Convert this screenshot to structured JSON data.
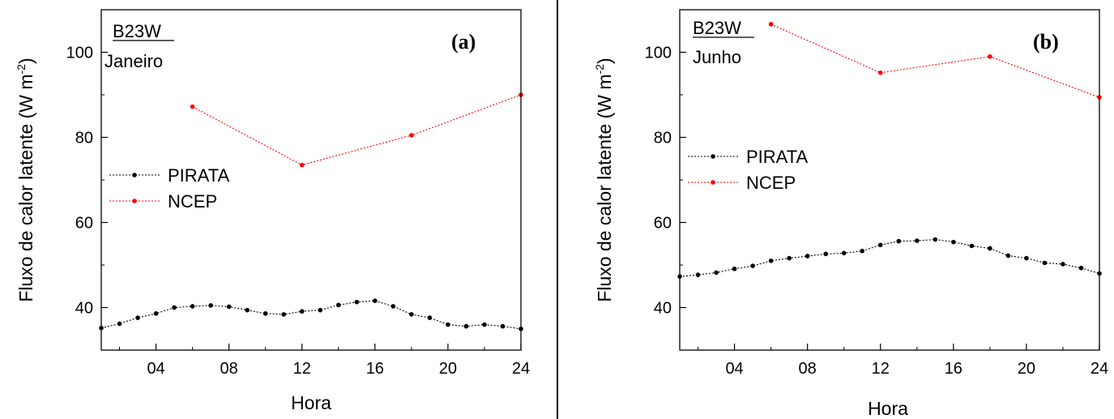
{
  "chart_data": [
    {
      "type": "line",
      "panel_label": "(a)",
      "station": "B23W",
      "month": "Janeiro",
      "xlabel": "Hora",
      "ylabel": "Fluxo de calor latente (W m",
      "ylabel_sup": "-2",
      "ylabel_close": ")",
      "xlim": [
        1,
        24
      ],
      "ylim": [
        30,
        110
      ],
      "xticks": [
        "04",
        "08",
        "12",
        "16",
        "20",
        "24"
      ],
      "xtick_values": [
        4,
        8,
        12,
        16,
        20,
        24
      ],
      "yticks": [
        "40",
        "60",
        "80",
        "100"
      ],
      "ytick_values": [
        40,
        60,
        80,
        100
      ],
      "legend_position": "middle-left",
      "series": [
        {
          "name": "PIRATA",
          "color": "#000000",
          "x": [
            1,
            2,
            3,
            4,
            5,
            6,
            7,
            8,
            9,
            10,
            11,
            12,
            13,
            14,
            15,
            16,
            17,
            18,
            19,
            20,
            21,
            22,
            23,
            24
          ],
          "y": [
            35.2,
            36.2,
            37.6,
            38.6,
            40.0,
            40.3,
            40.5,
            40.2,
            39.4,
            38.6,
            38.4,
            39.1,
            39.4,
            40.6,
            41.3,
            41.6,
            40.3,
            38.4,
            37.6,
            36.0,
            35.6,
            36.0,
            35.6,
            35.0
          ]
        },
        {
          "name": "NCEP",
          "color": "#ff0000",
          "x": [
            6,
            12,
            18,
            24
          ],
          "y": [
            87.2,
            73.5,
            80.5,
            90.0
          ]
        }
      ]
    },
    {
      "type": "line",
      "panel_label": "(b)",
      "station": "B23W",
      "month": "Junho",
      "xlabel": "Hora",
      "ylabel": "Fluxo de calor latente (W m",
      "ylabel_sup": "-2",
      "ylabel_close": ")",
      "xlim": [
        1,
        24
      ],
      "ylim": [
        30,
        110
      ],
      "xticks": [
        "04",
        "08",
        "12",
        "16",
        "20",
        "24"
      ],
      "xtick_values": [
        4,
        8,
        12,
        16,
        20,
        24
      ],
      "yticks": [
        "40",
        "60",
        "80",
        "100"
      ],
      "ytick_values": [
        40,
        60,
        80,
        100
      ],
      "legend_position": "middle-left",
      "series": [
        {
          "name": "PIRATA",
          "color": "#000000",
          "x": [
            1,
            2,
            3,
            4,
            5,
            6,
            7,
            8,
            9,
            10,
            11,
            12,
            13,
            14,
            15,
            16,
            17,
            18,
            19,
            20,
            21,
            22,
            23,
            24
          ],
          "y": [
            47.3,
            47.7,
            48.2,
            49.1,
            49.8,
            51.0,
            51.6,
            52.1,
            52.6,
            52.8,
            53.3,
            54.7,
            55.6,
            55.7,
            56.0,
            55.4,
            54.5,
            53.9,
            52.2,
            51.6,
            50.5,
            50.2,
            49.3,
            48.0
          ]
        },
        {
          "name": "NCEP",
          "color": "#ff0000",
          "x": [
            6,
            12,
            18,
            24
          ],
          "y": [
            106.6,
            95.2,
            99.0,
            89.4
          ]
        }
      ]
    }
  ]
}
